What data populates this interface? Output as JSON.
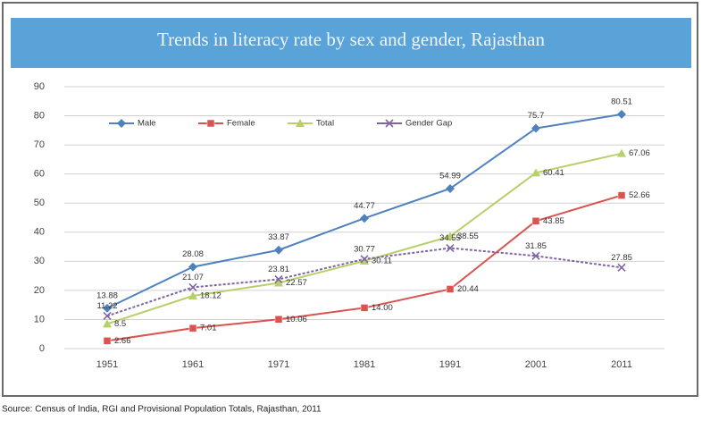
{
  "chart_data": {
    "type": "line",
    "title": "Trends in literacy rate by sex and gender, Rajasthan",
    "source": "Source: Census of India, RGI and Provisional Population Totals, Rajasthan, 2011",
    "categories": [
      "1951",
      "1961",
      "1971",
      "1981",
      "1991",
      "2001",
      "2011"
    ],
    "series": [
      {
        "name": "Male",
        "color": "#4f81bd",
        "marker": "diamond",
        "values": [
          13.88,
          28.08,
          33.87,
          44.77,
          54.99,
          75.7,
          80.51
        ]
      },
      {
        "name": "Female",
        "color": "#d9534f",
        "marker": "square",
        "values": [
          2.66,
          7.01,
          10.06,
          14.0,
          20.44,
          43.85,
          52.66
        ],
        "value_labels": [
          "2.66",
          "7.01",
          "10.06",
          "14.00",
          "20.44",
          "43.85",
          "52.66"
        ]
      },
      {
        "name": "Total",
        "color": "#b8cf6a",
        "marker": "triangle",
        "values": [
          8.5,
          18.12,
          22.57,
          30.11,
          38.55,
          60.41,
          67.06
        ]
      },
      {
        "name": "Gender Gap",
        "color": "#8064a2",
        "marker": "cross",
        "values": [
          11.22,
          21.07,
          23.81,
          30.77,
          34.55,
          31.85,
          27.85
        ]
      }
    ],
    "ylim": [
      0,
      90
    ],
    "yticks": [
      0,
      10,
      20,
      30,
      40,
      50,
      60,
      70,
      80,
      90
    ],
    "grid": true,
    "legend": "top-left"
  }
}
